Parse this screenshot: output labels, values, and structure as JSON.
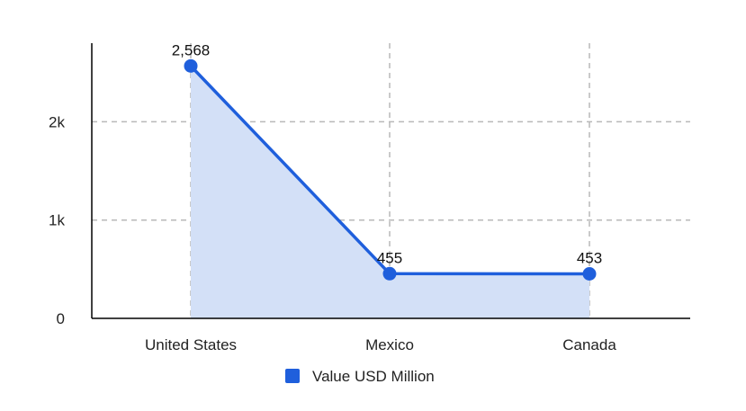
{
  "chart_data": {
    "type": "area",
    "categories": [
      "United States",
      "Mexico",
      "Canada"
    ],
    "series": [
      {
        "name": "Value USD Million",
        "values": [
          2568,
          455,
          453
        ],
        "color": "#1f5fdc"
      }
    ],
    "data_labels": [
      "2,568",
      "455",
      "453"
    ],
    "y_ticks": [
      {
        "value": 0,
        "label": "0"
      },
      {
        "value": 1000,
        "label": "1k"
      },
      {
        "value": 2000,
        "label": "2k"
      }
    ],
    "ylim": [
      0,
      2800
    ],
    "grid": true,
    "legend_position": "bottom",
    "fill_color": "#d3e0f7",
    "grid_color": "#b8b8b8",
    "axis_color": "#000000"
  }
}
